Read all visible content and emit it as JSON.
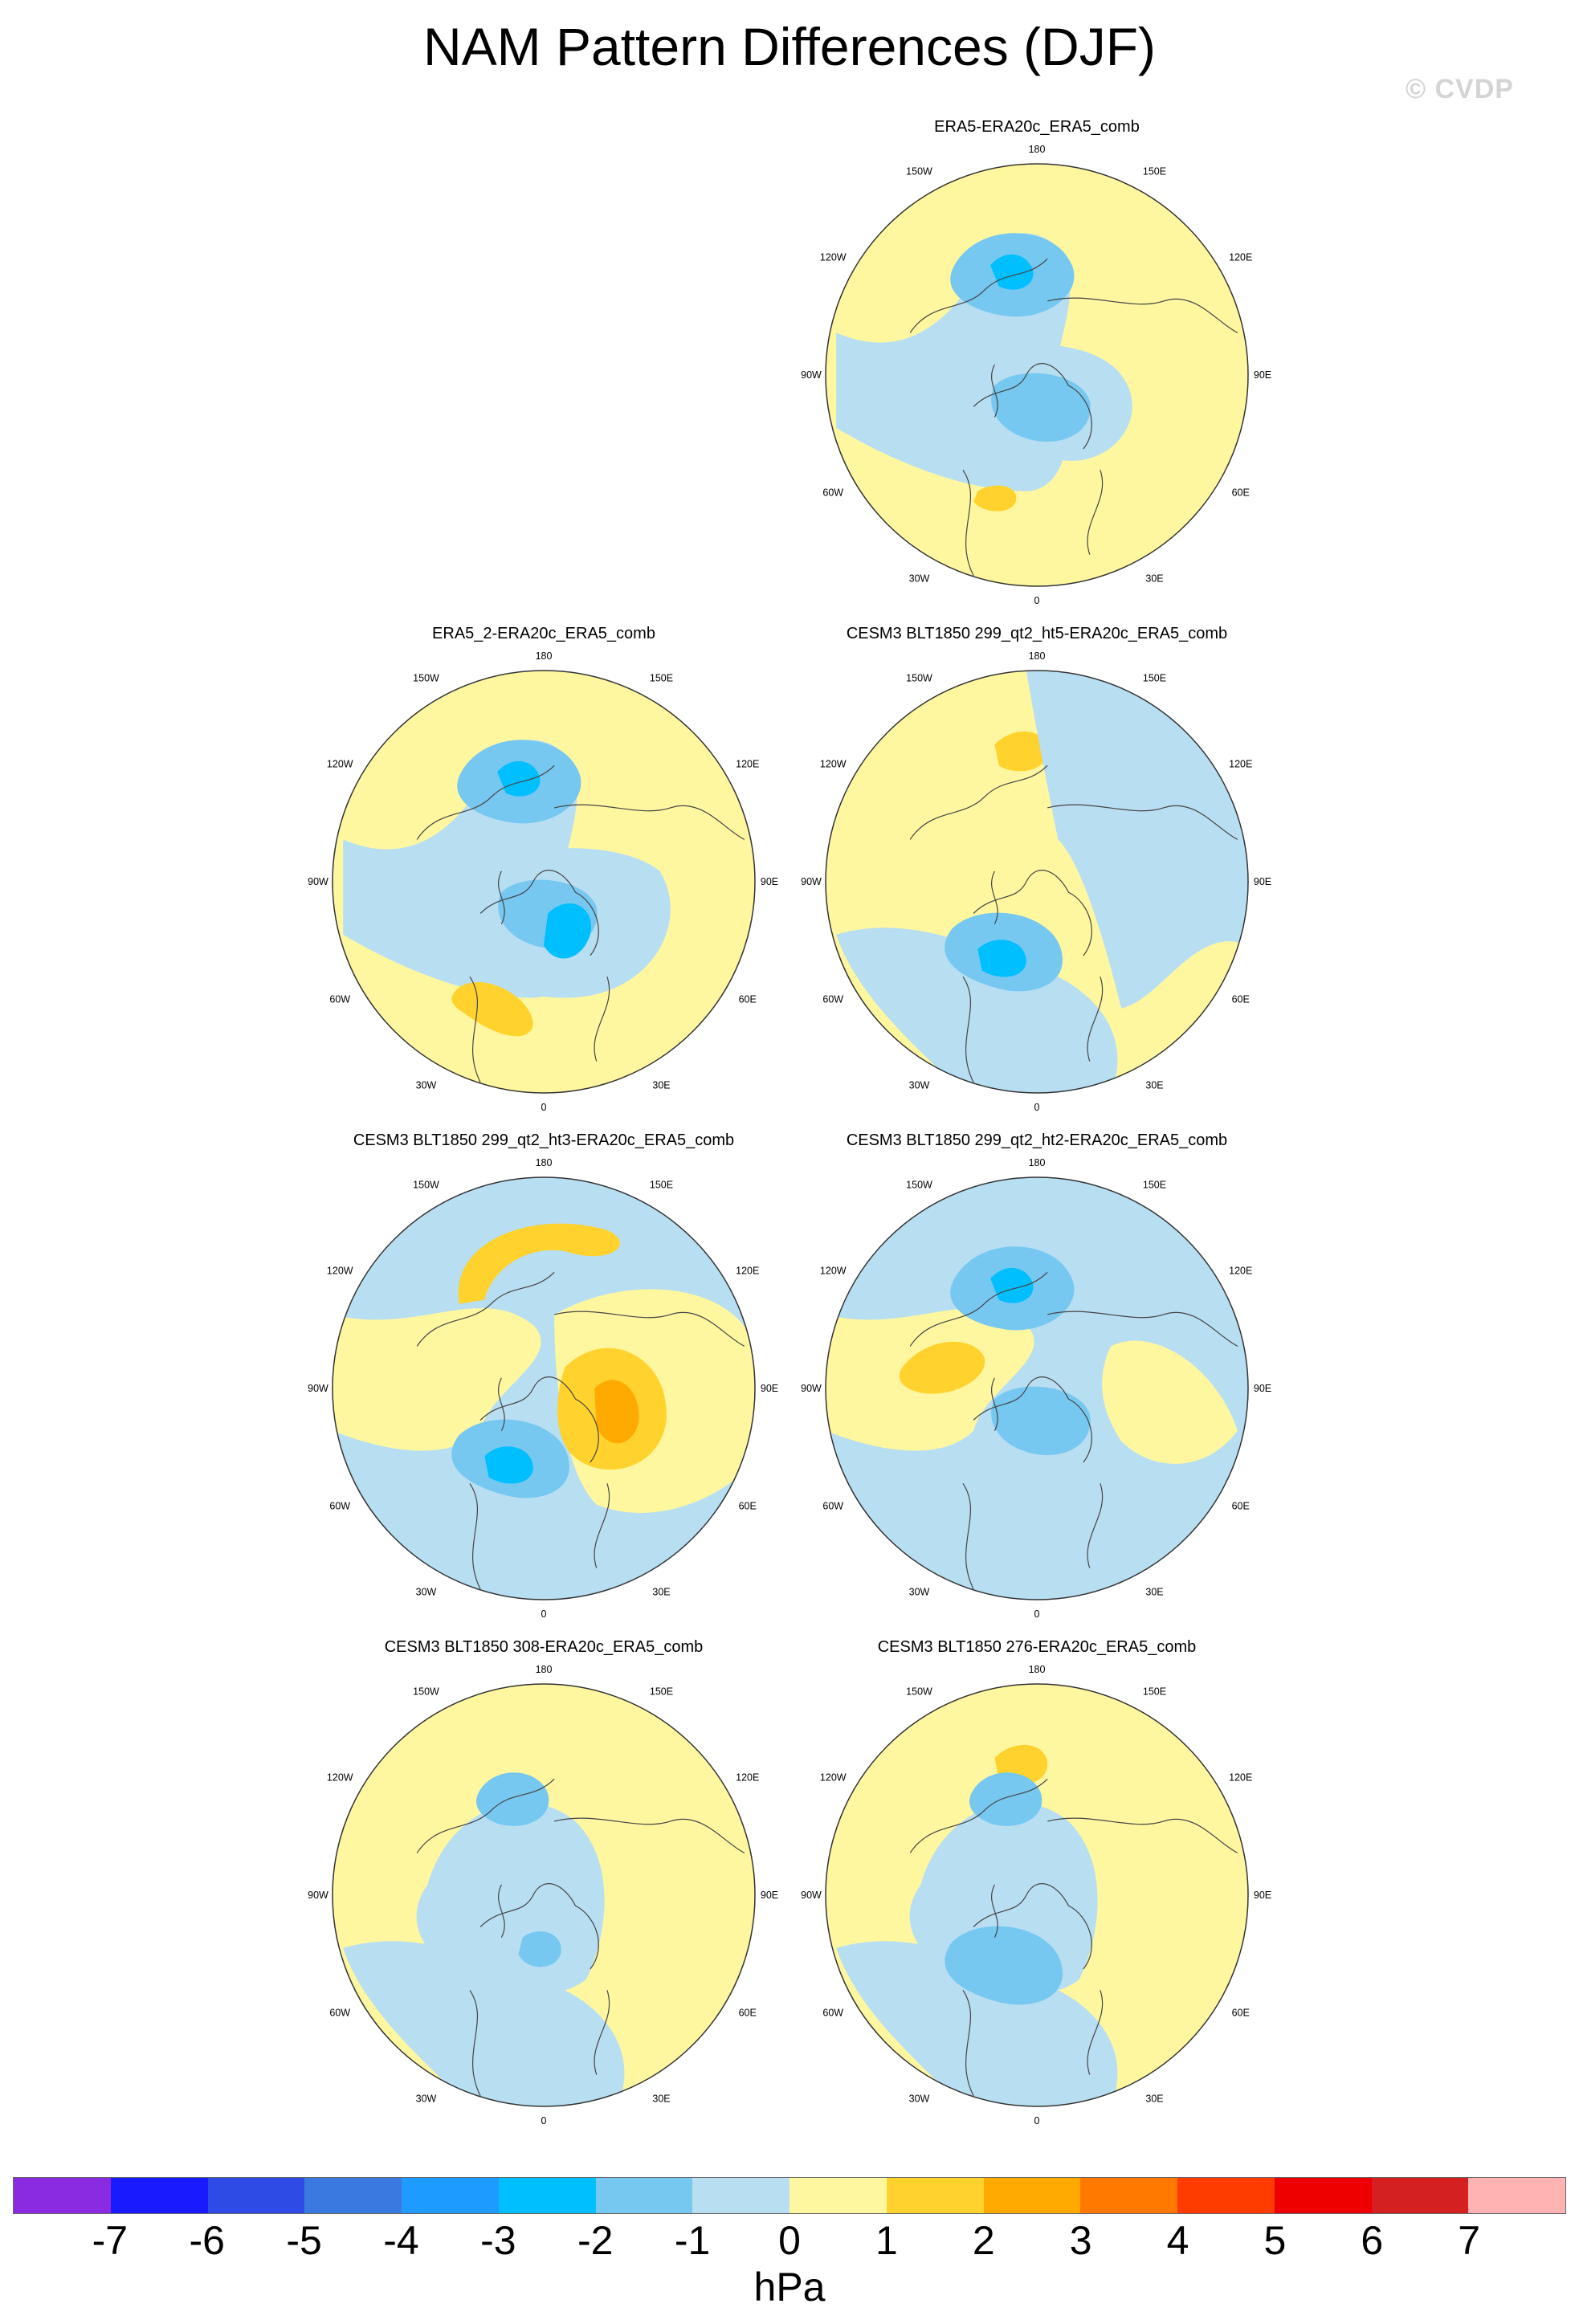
{
  "title": "NAM Pattern Differences (DJF)",
  "watermark": "© CVDP",
  "lon_labels": [
    "180",
    "150E",
    "120E",
    "90E",
    "60E",
    "30E",
    "0",
    "30W",
    "60W",
    "90W",
    "120W",
    "150W"
  ],
  "panels": [
    {
      "title": "ERA5-ERA20c_ERA5_comb",
      "base": "yellow",
      "blobs": [
        {
          "level": -1,
          "shape": "band-pacific"
        },
        {
          "level": -1,
          "shape": "arctic"
        },
        {
          "level": -2,
          "shape": "pacific-low"
        },
        {
          "level": -3,
          "shape": "pacific-core"
        },
        {
          "level": -2,
          "shape": "arctic-core"
        },
        {
          "level": 1,
          "shape": "atlantic-small"
        }
      ]
    },
    {
      "title": "ERA5_2-ERA20c_ERA5_comb",
      "base": "yellow",
      "blobs": [
        {
          "level": -1,
          "shape": "band-pacific"
        },
        {
          "level": -1,
          "shape": "arctic-wide"
        },
        {
          "level": -2,
          "shape": "pacific-low"
        },
        {
          "level": -3,
          "shape": "pacific-core"
        },
        {
          "level": -2,
          "shape": "arctic-core"
        },
        {
          "level": -3,
          "shape": "europe-core"
        },
        {
          "level": 1,
          "shape": "atlantic-high"
        }
      ]
    },
    {
      "title": "CESM3 BLT1850 299_qt2_ht5-ERA20c_ERA5_comb",
      "base": "yellow",
      "blobs": [
        {
          "level": 1,
          "shape": "pacific-small-high"
        },
        {
          "level": -1,
          "shape": "east-half"
        },
        {
          "level": -1,
          "shape": "atlantic-south"
        },
        {
          "level": -2,
          "shape": "atlantic-low"
        },
        {
          "level": -3,
          "shape": "atlantic-core"
        }
      ]
    },
    {
      "title": "CESM3 BLT1850 299_qt2_ht3-ERA20c_ERA5_comb",
      "base": "blue",
      "blobs": [
        {
          "level": 0,
          "shape": "west-half"
        },
        {
          "level": 1,
          "shape": "pacific-arc"
        },
        {
          "level": 0,
          "shape": "eurasia"
        },
        {
          "level": 1,
          "shape": "eurasia-high"
        },
        {
          "level": 2,
          "shape": "eurasia-core"
        },
        {
          "level": -2,
          "shape": "atlantic-low"
        },
        {
          "level": -3,
          "shape": "atlantic-core"
        }
      ]
    },
    {
      "title": "CESM3 BLT1850 299_qt2_ht2-ERA20c_ERA5_comb",
      "base": "blue",
      "blobs": [
        {
          "level": 0,
          "shape": "west-half"
        },
        {
          "level": 0,
          "shape": "east-patch"
        },
        {
          "level": -2,
          "shape": "pacific-low"
        },
        {
          "level": -3,
          "shape": "pacific-core"
        },
        {
          "level": -2,
          "shape": "arctic-core"
        },
        {
          "level": 1,
          "shape": "canada-high"
        }
      ]
    },
    {
      "title": "CESM3 BLT1850 308-ERA20c_ERA5_comb",
      "base": "yellow",
      "blobs": [
        {
          "level": -1,
          "shape": "central"
        },
        {
          "level": -1,
          "shape": "atlantic-south"
        },
        {
          "level": -2,
          "shape": "pacific-low-small"
        },
        {
          "level": -2,
          "shape": "atlantic-small-low"
        }
      ]
    },
    {
      "title": "CESM3 BLT1850 276-ERA20c_ERA5_comb",
      "base": "yellow",
      "blobs": [
        {
          "level": -1,
          "shape": "central"
        },
        {
          "level": -1,
          "shape": "atlantic-south"
        },
        {
          "level": -2,
          "shape": "atlantic-low"
        },
        {
          "level": 1,
          "shape": "pacific-small-high"
        },
        {
          "level": -2,
          "shape": "pacific-low-small"
        }
      ]
    }
  ],
  "colorbar": {
    "colors": [
      "#8a2be2",
      "#1a1aff",
      "#2e4be6",
      "#3a7ae0",
      "#1e9bff",
      "#00bfff",
      "#76c8f0",
      "#b8def2",
      "#fff7a0",
      "#ffd22e",
      "#ffaa00",
      "#ff7800",
      "#ff3c00",
      "#ee0000",
      "#d42020",
      "#ffb3b3"
    ],
    "ticks": [
      "-7",
      "-6",
      "-5",
      "-4",
      "-3",
      "-2",
      "-1",
      "0",
      "1",
      "2",
      "3",
      "4",
      "5",
      "6",
      "7"
    ],
    "units": "hPa"
  },
  "level_colors": {
    "-3": "#00bfff",
    "-2": "#76c8f0",
    "-1": "#b8def2",
    "0": "#fff7a0",
    "1": "#ffd22e",
    "2": "#ffaa00"
  }
}
